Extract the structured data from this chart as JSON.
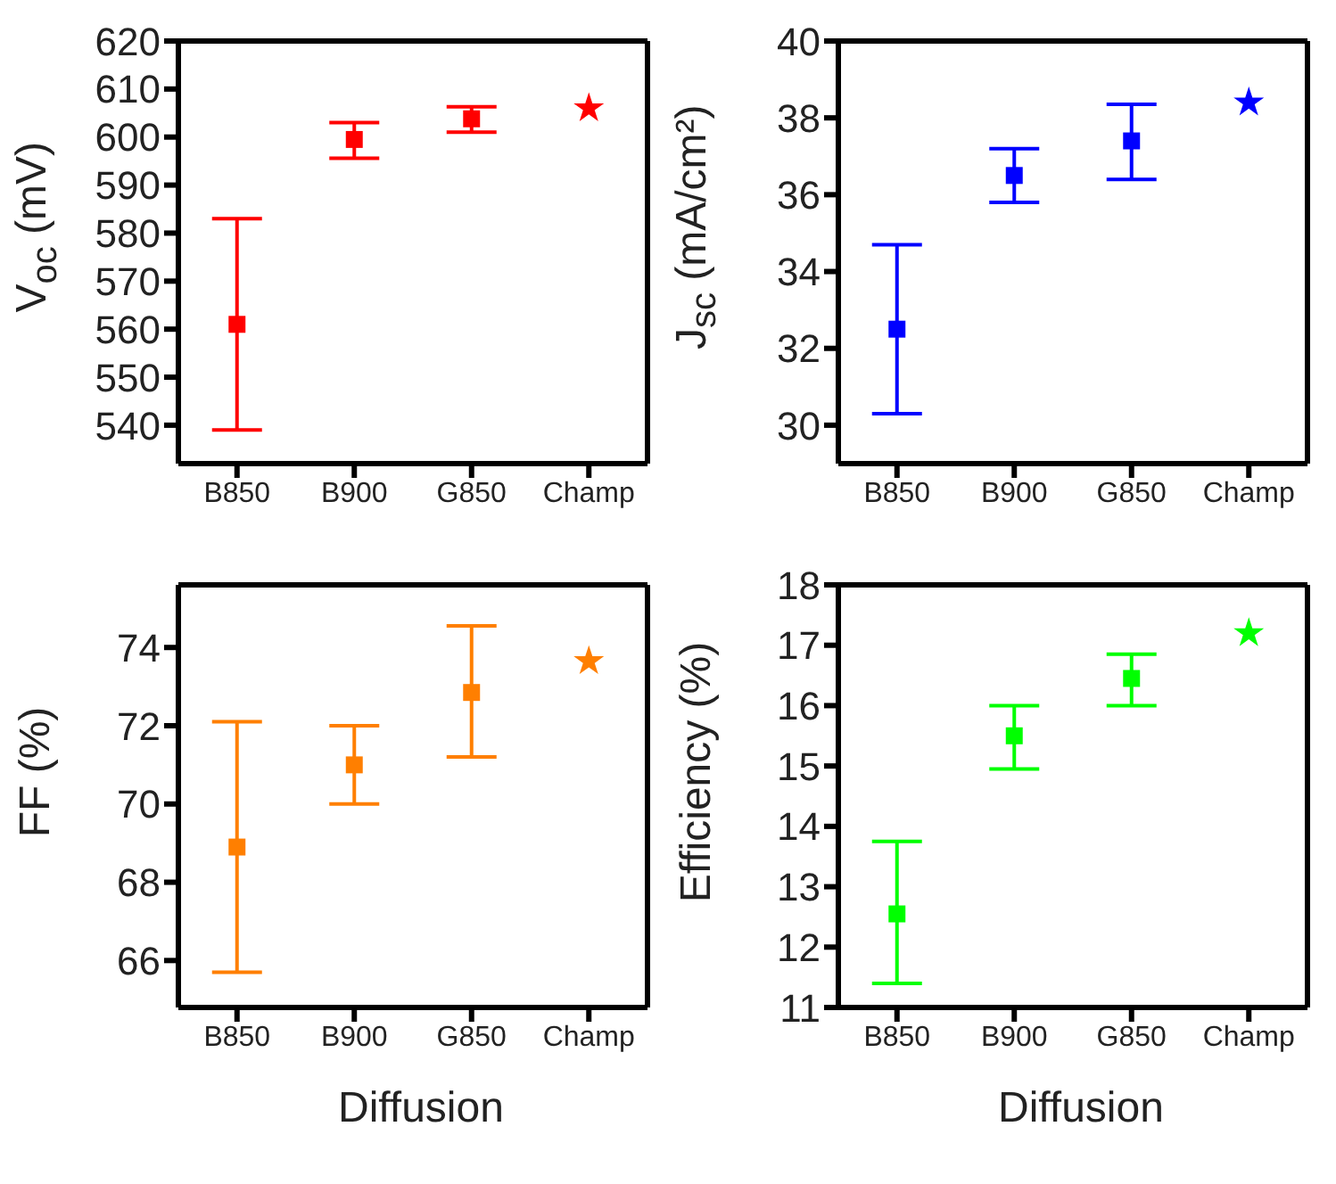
{
  "chart_data": [
    {
      "type": "scatter",
      "ylabel": "V$_{oc}$ (mV)",
      "categories": [
        "B850",
        "B900",
        "G850",
        "Champ"
      ],
      "ylim": [
        532,
        620
      ],
      "yticks": [
        540,
        550,
        560,
        570,
        580,
        590,
        600,
        610,
        620
      ],
      "series": [
        {
          "color": "#ff0000",
          "marker": "square",
          "values": [
            561,
            599.5,
            603.8,
            null
          ],
          "errors": [
            [
              539,
              583
            ],
            [
              595.6,
              603
            ],
            [
              601,
              606.3
            ],
            null
          ]
        },
        {
          "color": "#ff0000",
          "marker": "star",
          "values": [
            null,
            null,
            null,
            606
          ]
        }
      ]
    },
    {
      "type": "scatter",
      "ylabel": "J$_{sc}$ (mA/cm²)",
      "categories": [
        "B850",
        "B900",
        "G850",
        "Champ"
      ],
      "ylim": [
        29,
        40
      ],
      "yticks": [
        30,
        32,
        34,
        36,
        38,
        40
      ],
      "series": [
        {
          "color": "#0000ff",
          "marker": "square",
          "values": [
            32.5,
            36.5,
            37.4,
            null
          ],
          "errors": [
            [
              30.3,
              34.7
            ],
            [
              35.8,
              37.2
            ],
            [
              36.4,
              38.35
            ],
            null
          ]
        },
        {
          "color": "#0000ff",
          "marker": "star",
          "values": [
            null,
            null,
            null,
            38.4
          ]
        }
      ]
    },
    {
      "type": "scatter",
      "ylabel": "FF (%)",
      "xlabel": "Diffusion",
      "categories": [
        "B850",
        "B900",
        "G850",
        "Champ"
      ],
      "ylim": [
        64.8,
        75.6
      ],
      "yticks": [
        66,
        68,
        70,
        72,
        74
      ],
      "series": [
        {
          "color": "#ff7f00",
          "marker": "square",
          "values": [
            68.9,
            71.0,
            72.85,
            null
          ],
          "errors": [
            [
              65.7,
              72.1
            ],
            [
              70.0,
              72.0
            ],
            [
              71.2,
              74.55
            ],
            null
          ]
        },
        {
          "color": "#ff7f00",
          "marker": "star",
          "values": [
            null,
            null,
            null,
            73.65
          ]
        }
      ]
    },
    {
      "type": "scatter",
      "ylabel": "Efficiency (%)",
      "xlabel": "Diffusion",
      "categories": [
        "B850",
        "B900",
        "G850",
        "Champ"
      ],
      "ylim": [
        11,
        18
      ],
      "yticks": [
        11,
        12,
        13,
        14,
        15,
        16,
        17,
        18
      ],
      "series": [
        {
          "color": "#00ff00",
          "marker": "square",
          "values": [
            12.55,
            15.5,
            16.45,
            null
          ],
          "errors": [
            [
              11.4,
              13.75
            ],
            [
              14.95,
              16.0
            ],
            [
              16.0,
              16.85
            ],
            null
          ]
        },
        {
          "color": "#00ff00",
          "marker": "star",
          "values": [
            null,
            null,
            null,
            17.2
          ]
        }
      ]
    }
  ]
}
